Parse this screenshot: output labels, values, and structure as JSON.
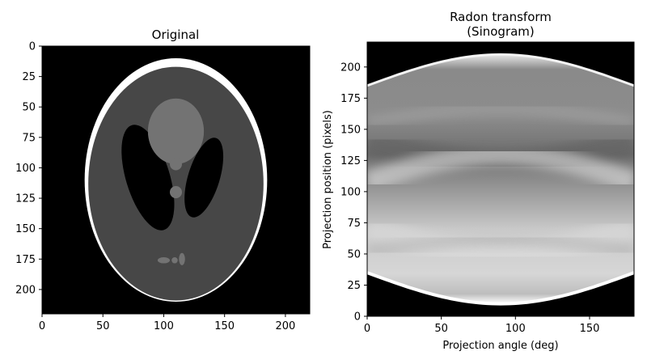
{
  "chart_data": [
    {
      "type": "heatmap",
      "title": "Original",
      "xlabel": "",
      "ylabel": "",
      "xlim": [
        0,
        220
      ],
      "ylim": [
        220,
        0
      ],
      "xticks": [
        0,
        50,
        100,
        150,
        200
      ],
      "yticks": [
        0,
        25,
        50,
        75,
        100,
        125,
        150,
        175,
        200
      ],
      "colormap": "gray",
      "background": "#000000",
      "ellipses": [
        {
          "role": "skull-outer",
          "cx": 110,
          "cy": 110,
          "rx": 75,
          "ry": 100,
          "angle": 0,
          "color": "#ffffff"
        },
        {
          "role": "brain",
          "cx": 110,
          "cy": 113,
          "rx": 72,
          "ry": 96,
          "angle": 0,
          "color": "#474747"
        },
        {
          "role": "left-ventricle",
          "cx": 87,
          "cy": 108,
          "rx": 18,
          "ry": 45,
          "angle": -17,
          "color": "#000000"
        },
        {
          "role": "right-ventricle",
          "cx": 133,
          "cy": 108,
          "rx": 13,
          "ry": 34,
          "angle": 17,
          "color": "#000000"
        },
        {
          "role": "upper-region",
          "cx": 110,
          "cy": 70,
          "rx": 23,
          "ry": 27,
          "angle": 0,
          "color": "#737373"
        },
        {
          "role": "dot-1",
          "cx": 110,
          "cy": 97,
          "rx": 5,
          "ry": 5,
          "angle": 0,
          "color": "#737373"
        },
        {
          "role": "dot-2",
          "cx": 110,
          "cy": 120,
          "rx": 5,
          "ry": 5,
          "angle": 0,
          "color": "#737373"
        },
        {
          "role": "small-1",
          "cx": 100,
          "cy": 176,
          "rx": 5,
          "ry": 2.5,
          "angle": 0,
          "color": "#737373"
        },
        {
          "role": "small-2",
          "cx": 109,
          "cy": 176,
          "rx": 2.5,
          "ry": 2.5,
          "angle": 0,
          "color": "#737373"
        },
        {
          "role": "small-3",
          "cx": 115,
          "cy": 175,
          "rx": 2.5,
          "ry": 5,
          "angle": 0,
          "color": "#737373"
        }
      ]
    },
    {
      "type": "heatmap",
      "title": "Radon transform\n(Sinogram)",
      "title_lines": [
        "Radon transform",
        "(Sinogram)"
      ],
      "xlabel": "Projection angle (deg)",
      "ylabel": "Projection position (pixels)",
      "xlim": [
        0,
        180
      ],
      "ylim": [
        0,
        220
      ],
      "xticks": [
        0,
        50,
        100,
        150
      ],
      "yticks": [
        0,
        25,
        50,
        75,
        100,
        125,
        150,
        175,
        200
      ],
      "colormap": "gray",
      "outer_boundary": {
        "upper": [
          [
            0,
            185
          ],
          [
            45,
            198
          ],
          [
            90,
            210
          ],
          [
            135,
            198
          ],
          [
            180,
            185
          ]
        ],
        "lower": [
          [
            0,
            35
          ],
          [
            45,
            22
          ],
          [
            90,
            10
          ],
          [
            135,
            22
          ],
          [
            180,
            35
          ]
        ]
      }
    }
  ]
}
